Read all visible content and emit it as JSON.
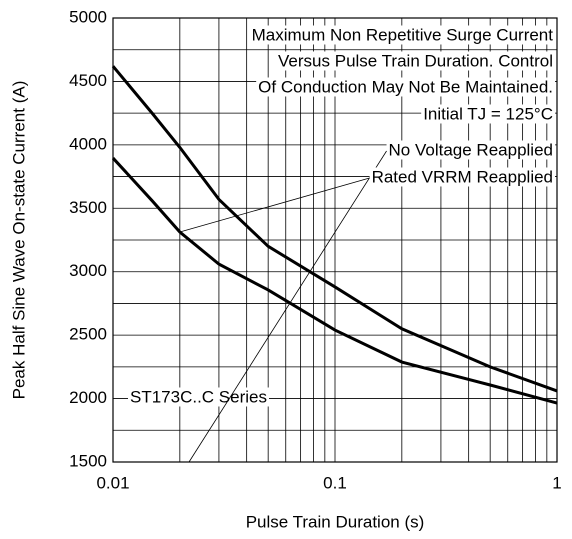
{
  "chart_data": {
    "type": "line",
    "xscale": "log",
    "grid": true,
    "xlabel": "Pulse Train Duration (s)",
    "ylabel": "Peak Half Sine Wave On-state Current (A)",
    "xlim": [
      0.01,
      1
    ],
    "xticks": [
      0.01,
      0.1,
      1
    ],
    "xminorticks": [
      0.02,
      0.03,
      0.04,
      0.05,
      0.06,
      0.07,
      0.08,
      0.09,
      0.2,
      0.3,
      0.4,
      0.5,
      0.6,
      0.7,
      0.8,
      0.9
    ],
    "ylim": [
      1500,
      5000
    ],
    "yticks": [
      1500,
      2000,
      2500,
      3000,
      3500,
      4000,
      4500,
      5000
    ],
    "yminorticks": [
      1750,
      2250,
      2750,
      3250,
      3750,
      4250,
      4750
    ],
    "annotations": [
      "Maximum Non Repetitive Surge Current",
      "Versus Pulse Train Duration. Control",
      "Of Conduction May Not Be Maintained.",
      "Initial TJ = 125°C",
      "ST173C..C Series"
    ],
    "x": [
      0.01,
      0.015,
      0.02,
      0.03,
      0.05,
      0.1,
      0.2,
      0.5,
      1
    ],
    "series": [
      {
        "name": "No Voltage Reapplied",
        "color": "#000000",
        "values": [
          4620,
          4250,
          3980,
          3570,
          3200,
          2880,
          2550,
          2250,
          2060
        ]
      },
      {
        "name": "Rated VRRM Reapplied",
        "color": "#000000",
        "values": [
          3896,
          3560,
          3313,
          3060,
          2856,
          2540,
          2288,
          2107,
          1965
        ]
      }
    ]
  }
}
